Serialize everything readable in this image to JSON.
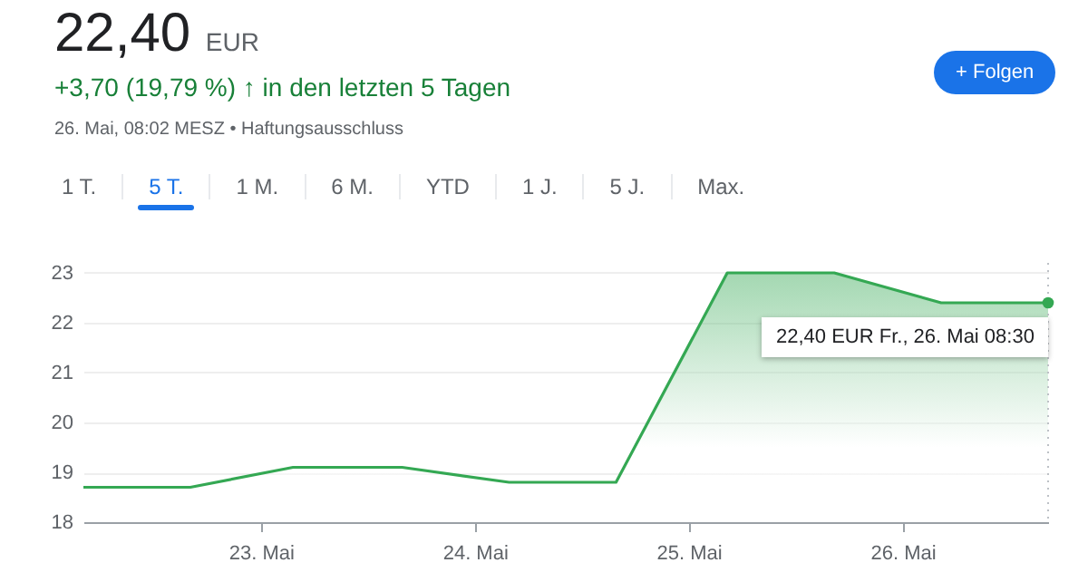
{
  "chart_data": {
    "type": "area",
    "title": "22,40 EUR",
    "subtitle": "+3,70 (19,79 %) ↑ in den letzten 5 Tagen",
    "annotations": [
      "26. Mai, 08:02 MESZ • Haftungsausschluss",
      "1 T.",
      "5 T.",
      "1 M.",
      "6 M.",
      "YTD",
      "1 J.",
      "5 J.",
      "Max.",
      "+ Folgen",
      {
        "text": "22,40 EUR  Fr., 26. Mai 08:30",
        "x": 26.68,
        "y": 22.4
      }
    ],
    "x": [
      22.17,
      22.67,
      23.15,
      23.66,
      24.16,
      24.66,
      25.18,
      25.68,
      26.18,
      26.68
    ],
    "values": [
      18.7,
      18.7,
      19.1,
      19.1,
      18.8,
      18.8,
      23.0,
      23.0,
      22.4,
      22.4
    ],
    "color": "#34a853",
    "xlim": [
      22.17,
      26.68
    ],
    "xticks": [
      {
        "value": 23,
        "label": "23. Mai"
      },
      {
        "value": 24,
        "label": "24. Mai"
      },
      {
        "value": 25,
        "label": "25. Mai"
      },
      {
        "value": 26,
        "label": "26. Mai"
      }
    ],
    "ylim": [
      18,
      23.2
    ],
    "yticks": [
      18,
      19,
      20,
      21,
      22,
      23
    ],
    "ref_lines": [
      {
        "axis": "x",
        "value": 26.68,
        "color": "#bdc1c6",
        "line_style": "dotted"
      }
    ],
    "grid": "y"
  }
}
